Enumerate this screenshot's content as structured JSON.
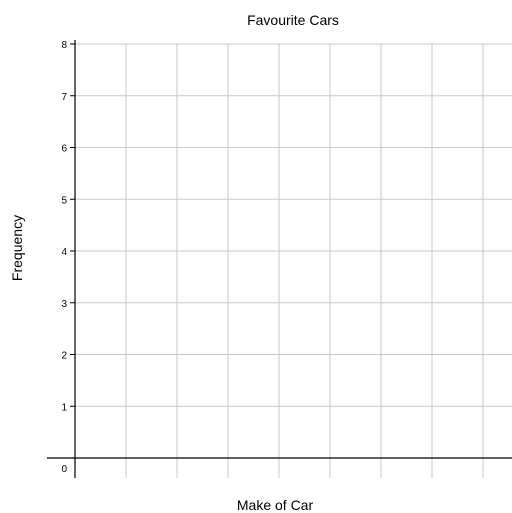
{
  "chart_data": {
    "type": "bar",
    "title": "Favourite Cars",
    "xlabel": "Make of Car",
    "ylabel": "Frequency",
    "categories": [],
    "values": [],
    "ylim": [
      0,
      8
    ],
    "yticks": [
      "0",
      "1",
      "2",
      "3",
      "4",
      "5",
      "6",
      "7",
      "8"
    ],
    "grid": true,
    "legend": "none",
    "colors": {
      "grid": "#c8c8c8",
      "axis": "#000000",
      "text": "#000000"
    }
  }
}
